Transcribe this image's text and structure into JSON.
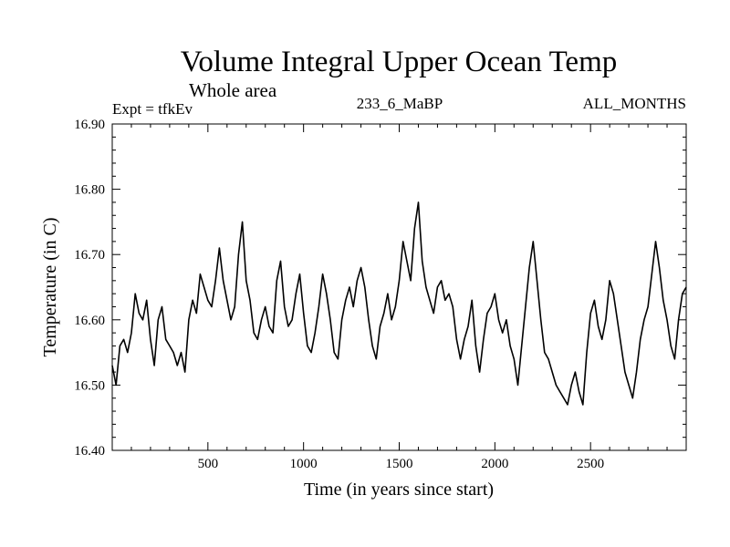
{
  "chart_data": {
    "type": "line",
    "title": "Volume Integral Upper Ocean Temp",
    "subtitle": "Whole area",
    "annotations": {
      "left": "Expt = tfkEv",
      "center": "233_6_MaBP",
      "right": "ALL_MONTHS"
    },
    "xlabel": "Time (in years since start)",
    "ylabel": "Temperature (in C)",
    "xlim": [
      0,
      3000
    ],
    "ylim": [
      16.4,
      16.9
    ],
    "x_ticks": [
      500,
      1000,
      1500,
      2000,
      2500
    ],
    "x_tick_labels": [
      "500",
      "1000",
      "1500",
      "2000",
      "2500"
    ],
    "y_ticks": [
      16.4,
      16.5,
      16.6,
      16.7,
      16.8,
      16.9
    ],
    "y_tick_labels": [
      "16.40",
      "16.50",
      "16.60",
      "16.70",
      "16.80",
      "16.90"
    ],
    "grid": false,
    "series": [
      {
        "color": "#000000",
        "x": [
          0,
          20,
          40,
          60,
          80,
          100,
          120,
          140,
          160,
          180,
          200,
          220,
          240,
          260,
          280,
          300,
          320,
          340,
          360,
          380,
          400,
          420,
          440,
          460,
          480,
          500,
          520,
          540,
          560,
          580,
          600,
          620,
          640,
          660,
          680,
          700,
          720,
          740,
          760,
          780,
          800,
          820,
          840,
          860,
          880,
          900,
          920,
          940,
          960,
          980,
          1000,
          1020,
          1040,
          1060,
          1080,
          1100,
          1120,
          1140,
          1160,
          1180,
          1200,
          1220,
          1240,
          1260,
          1280,
          1300,
          1320,
          1340,
          1360,
          1380,
          1400,
          1420,
          1440,
          1460,
          1480,
          1500,
          1520,
          1540,
          1560,
          1580,
          1600,
          1620,
          1640,
          1660,
          1680,
          1700,
          1720,
          1740,
          1760,
          1780,
          1800,
          1820,
          1840,
          1860,
          1880,
          1900,
          1920,
          1940,
          1960,
          1980,
          2000,
          2020,
          2040,
          2060,
          2080,
          2100,
          2120,
          2140,
          2160,
          2180,
          2200,
          2220,
          2240,
          2260,
          2280,
          2300,
          2320,
          2340,
          2360,
          2380,
          2400,
          2420,
          2440,
          2460,
          2480,
          2500,
          2520,
          2540,
          2560,
          2580,
          2600,
          2620,
          2640,
          2660,
          2680,
          2700,
          2720,
          2740,
          2760,
          2780,
          2800,
          2820,
          2840,
          2860,
          2880,
          2900,
          2920,
          2940,
          2960,
          2980,
          3000
        ],
        "y": [
          16.53,
          16.5,
          16.56,
          16.57,
          16.55,
          16.58,
          16.64,
          16.61,
          16.6,
          16.63,
          16.57,
          16.53,
          16.6,
          16.62,
          16.57,
          16.56,
          16.55,
          16.53,
          16.55,
          16.52,
          16.6,
          16.63,
          16.61,
          16.67,
          16.65,
          16.63,
          16.62,
          16.66,
          16.71,
          16.66,
          16.63,
          16.6,
          16.62,
          16.7,
          16.75,
          16.66,
          16.63,
          16.58,
          16.57,
          16.6,
          16.62,
          16.59,
          16.58,
          16.66,
          16.69,
          16.62,
          16.59,
          16.6,
          16.64,
          16.67,
          16.61,
          16.56,
          16.55,
          16.58,
          16.62,
          16.67,
          16.64,
          16.6,
          16.55,
          16.54,
          16.6,
          16.63,
          16.65,
          16.62,
          16.66,
          16.68,
          16.65,
          16.6,
          16.56,
          16.54,
          16.59,
          16.61,
          16.64,
          16.6,
          16.62,
          16.66,
          16.72,
          16.69,
          16.66,
          16.74,
          16.78,
          16.69,
          16.65,
          16.63,
          16.61,
          16.65,
          16.66,
          16.63,
          16.64,
          16.62,
          16.57,
          16.54,
          16.57,
          16.59,
          16.63,
          16.56,
          16.52,
          16.57,
          16.61,
          16.62,
          16.64,
          16.6,
          16.58,
          16.6,
          16.56,
          16.54,
          16.5,
          16.56,
          16.62,
          16.68,
          16.72,
          16.66,
          16.6,
          16.55,
          16.54,
          16.52,
          16.5,
          16.49,
          16.48,
          16.47,
          16.5,
          16.52,
          16.49,
          16.47,
          16.55,
          16.61,
          16.63,
          16.59,
          16.57,
          16.6,
          16.66,
          16.64,
          16.6,
          16.56,
          16.52,
          16.5,
          16.48,
          16.52,
          16.57,
          16.6,
          16.62,
          16.67,
          16.72,
          16.68,
          16.63,
          16.6,
          16.56,
          16.54,
          16.6,
          16.64,
          16.65
        ]
      }
    ]
  }
}
